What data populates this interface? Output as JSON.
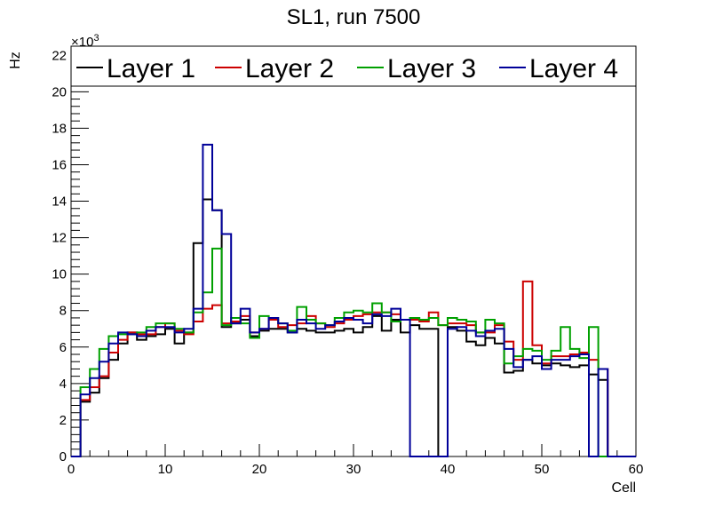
{
  "chart_data": {
    "type": "line",
    "title": "SL1, run 7500",
    "xlabel": "Cell",
    "ylabel": "Hz",
    "y_exponent_label": "×10",
    "y_exponent_power": "3",
    "xlim": [
      0,
      60
    ],
    "ylim": [
      0,
      22.5
    ],
    "x_ticks": [
      0,
      10,
      20,
      30,
      40,
      50,
      60
    ],
    "y_ticks": [
      0,
      2,
      4,
      6,
      8,
      10,
      12,
      14,
      16,
      18,
      20,
      22
    ],
    "x_tick_labels": [
      "0",
      "10",
      "20",
      "30",
      "40",
      "50",
      "60"
    ],
    "y_tick_labels": [
      "0",
      "2",
      "4",
      "6",
      "8",
      "10",
      "12",
      "14",
      "16",
      "18",
      "20",
      "22"
    ],
    "bin_edges": [
      0,
      1,
      2,
      3,
      4,
      5,
      6,
      7,
      8,
      9,
      10,
      11,
      12,
      13,
      14,
      15,
      16,
      17,
      18,
      19,
      20,
      21,
      22,
      23,
      24,
      25,
      26,
      27,
      28,
      29,
      30,
      31,
      32,
      33,
      34,
      35,
      36,
      37,
      38,
      39,
      40,
      41,
      42,
      43,
      44,
      45,
      46,
      47,
      48,
      49,
      50,
      51,
      52,
      53,
      54,
      55,
      56,
      57,
      58,
      59,
      60
    ],
    "legend_position": "top",
    "series": [
      {
        "name": "Layer 1",
        "color": "#000000",
        "values": [
          0,
          3.0,
          3.5,
          4.3,
          5.3,
          6.2,
          6.8,
          6.4,
          6.6,
          6.7,
          7.0,
          6.2,
          6.8,
          11.7,
          14.1,
          13.5,
          7.1,
          7.3,
          7.5,
          6.6,
          6.9,
          7.0,
          7.0,
          6.8,
          7.0,
          6.9,
          6.8,
          6.8,
          6.9,
          7.0,
          6.8,
          7.1,
          7.7,
          6.9,
          7.5,
          6.8,
          7.2,
          7.0,
          7.0,
          0,
          7.1,
          6.9,
          6.3,
          6.1,
          6.5,
          6.2,
          4.6,
          4.7,
          5.3,
          5.1,
          5.0,
          5.1,
          5.0,
          4.9,
          5.0,
          4.5,
          4.2,
          0,
          0,
          0
        ]
      },
      {
        "name": "Layer 2",
        "color": "#cc0000",
        "values": [
          0,
          3.1,
          3.8,
          4.4,
          5.7,
          6.4,
          6.8,
          6.7,
          6.7,
          7.1,
          7.3,
          6.9,
          6.7,
          7.4,
          8.1,
          8.3,
          7.3,
          7.4,
          7.7,
          6.8,
          7.0,
          7.5,
          7.1,
          7.2,
          7.3,
          7.7,
          7.3,
          7.1,
          7.3,
          7.5,
          7.7,
          7.8,
          7.9,
          7.9,
          7.8,
          7.5,
          7.5,
          7.4,
          7.9,
          7.2,
          7.3,
          7.3,
          7.2,
          6.8,
          6.8,
          7.2,
          6.3,
          5.3,
          9.6,
          6.1,
          5.1,
          5.5,
          5.5,
          5.6,
          5.7,
          5.3,
          4.8,
          0,
          0,
          0
        ]
      },
      {
        "name": "Layer 3",
        "color": "#00a000",
        "values": [
          0,
          3.8,
          4.8,
          5.9,
          6.6,
          6.7,
          6.7,
          6.8,
          7.1,
          7.3,
          7.3,
          7.0,
          6.8,
          7.9,
          9.0,
          11.4,
          7.2,
          7.6,
          7.3,
          6.5,
          7.7,
          7.6,
          7.3,
          6.9,
          8.2,
          7.5,
          7.3,
          7.2,
          7.6,
          7.9,
          8.0,
          7.9,
          8.4,
          7.9,
          7.4,
          7.5,
          7.6,
          7.5,
          7.6,
          7.2,
          7.6,
          7.5,
          7.4,
          6.8,
          7.5,
          7.3,
          5.1,
          5.5,
          5.9,
          5.8,
          5.3,
          5.8,
          7.1,
          5.9,
          5.4,
          7.1,
          0,
          0,
          0,
          0
        ]
      },
      {
        "name": "Layer 4",
        "color": "#000099",
        "values": [
          0,
          3.4,
          4.3,
          5.2,
          6.2,
          6.8,
          6.7,
          6.6,
          6.9,
          7.1,
          7.1,
          6.8,
          7.0,
          8.1,
          17.1,
          13.5,
          12.2,
          7.3,
          8.1,
          6.8,
          7.0,
          7.6,
          7.3,
          6.8,
          7.5,
          7.3,
          7.0,
          7.2,
          7.4,
          7.6,
          7.5,
          7.3,
          7.8,
          7.7,
          8.1,
          7.5,
          0,
          0,
          0,
          0,
          7.0,
          7.1,
          6.9,
          6.6,
          6.9,
          7.0,
          5.9,
          4.9,
          5.3,
          5.5,
          4.8,
          5.3,
          5.3,
          5.5,
          5.6,
          0,
          4.8,
          0,
          0,
          0
        ]
      }
    ]
  }
}
